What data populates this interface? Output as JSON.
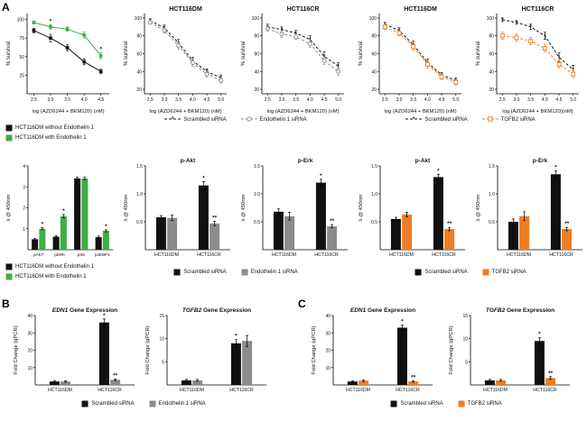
{
  "figure": {
    "panel_a_label": "A",
    "panel_b_label": "B",
    "panel_c_label": "C"
  },
  "colors": {
    "black": "#111111",
    "green": "#3cb044",
    "gray": "#8c8c8c",
    "orange": "#ef7d22"
  },
  "legends": [
    {
      "id": "leg1",
      "layout": "column",
      "entries": [
        {
          "type": "swatch",
          "color": "black",
          "label": "HCT116DM without Endothelin 1"
        },
        {
          "type": "swatch",
          "color": "green",
          "label": "HCT116DM with Endothelin 1"
        }
      ]
    },
    {
      "id": "leg2",
      "layout": "row",
      "entries": [
        {
          "type": "line",
          "marker": "star",
          "color": "black",
          "label": "Scrambled siRNA"
        },
        {
          "type": "line",
          "marker": "circle",
          "color": "gray",
          "label": "Endothelin 1 siRNA"
        }
      ]
    },
    {
      "id": "leg3",
      "layout": "row",
      "entries": [
        {
          "type": "line",
          "marker": "star",
          "color": "black",
          "label": "Scrambled siRNA"
        },
        {
          "type": "line",
          "marker": "osquare",
          "color": "orange",
          "label": "TGFB2 siRNA"
        }
      ]
    },
    {
      "id": "leg4",
      "layout": "column",
      "entries": [
        {
          "type": "swatch",
          "color": "black",
          "label": "HCT116DM without Endothelin 1"
        },
        {
          "type": "swatch",
          "color": "green",
          "label": "HCT116DM with Endothelin 1"
        }
      ]
    },
    {
      "id": "leg5",
      "layout": "row",
      "entries": [
        {
          "type": "swatch",
          "color": "black",
          "label": "Scrambled siRNA"
        },
        {
          "type": "swatch",
          "color": "gray",
          "label": "Endothelin 1 siRNA"
        }
      ]
    },
    {
      "id": "leg6",
      "layout": "row",
      "entries": [
        {
          "type": "swatch",
          "color": "black",
          "label": "Scrambled siRNA"
        },
        {
          "type": "swatch",
          "color": "orange",
          "label": "TGFB2 siRNA"
        }
      ]
    },
    {
      "id": "leg7",
      "layout": "row",
      "entries": [
        {
          "type": "swatch",
          "color": "black",
          "label": "Scrambled siRNA"
        },
        {
          "type": "swatch",
          "color": "gray",
          "label": "Endothelin 1 siRNA"
        }
      ]
    },
    {
      "id": "leg8",
      "layout": "row",
      "entries": [
        {
          "type": "swatch",
          "color": "black",
          "label": "Scrambled siRNA"
        },
        {
          "type": "swatch",
          "color": "orange",
          "label": "TGFB2 siRNA"
        }
      ]
    }
  ],
  "chart_data": [
    {
      "id": "a1",
      "kind": "line",
      "title": "",
      "xlabel": "log (AZD6244 + BKM120) (nM)",
      "ylabel": "% survival",
      "xlim": [
        2.3,
        4.75
      ],
      "xticks": [
        2.5,
        3.0,
        3.5,
        4.0,
        4.5
      ],
      "xtick_labels": [
        "2.5",
        "3.0",
        "3.5",
        "4.0",
        "4.5"
      ],
      "ylim": [
        0,
        108
      ],
      "yticks": [
        25,
        50,
        75,
        100
      ],
      "series": [
        {
          "name": "HCT116DM without Endothelin 1",
          "color": "black",
          "marker": "square",
          "x": [
            2.5,
            3.0,
            3.5,
            4.0,
            4.5
          ],
          "y": [
            85,
            75,
            62,
            43,
            30
          ],
          "err": [
            3,
            5,
            4,
            4,
            3
          ]
        },
        {
          "name": "HCT116DM with Endothelin 1",
          "color": "green",
          "marker": "square",
          "x": [
            2.5,
            3.0,
            3.5,
            4.0,
            4.5
          ],
          "y": [
            96,
            90,
            87,
            79,
            51
          ],
          "err": [
            2,
            3,
            3,
            4,
            4
          ],
          "sig": [
            "",
            "*",
            "",
            "",
            "*"
          ]
        }
      ]
    },
    {
      "id": "a2",
      "kind": "line",
      "title": "HCT116DM",
      "xlabel": "log (AZD6244 + BKM120) (nM)",
      "ylabel": "% survival",
      "xlim": [
        2.3,
        5.2
      ],
      "xticks": [
        2.5,
        3.0,
        3.5,
        4.0,
        4.5,
        5.0
      ],
      "xtick_labels": [
        "2.5",
        "3.0",
        "3.5",
        "4.0",
        "4.5",
        "5.0"
      ],
      "ylim": [
        15,
        105
      ],
      "yticks": [
        20,
        40,
        60,
        80,
        100
      ],
      "series": [
        {
          "name": "Scrambled siRNA",
          "color": "black",
          "marker": "star",
          "dash": "3,2",
          "x": [
            2.5,
            3.0,
            3.5,
            4.0,
            4.5,
            5.0
          ],
          "y": [
            97,
            89,
            72,
            52,
            40,
            33
          ],
          "err": [
            2,
            3,
            4,
            4,
            3,
            3
          ]
        },
        {
          "name": "Endothelin 1 siRNA",
          "color": "gray",
          "marker": "circle",
          "dash": "3,2",
          "x": [
            2.5,
            3.0,
            3.5,
            4.0,
            4.5,
            5.0
          ],
          "y": [
            95,
            86,
            69,
            50,
            37,
            30
          ],
          "err": [
            2,
            3,
            4,
            4,
            3,
            3
          ]
        }
      ]
    },
    {
      "id": "a3",
      "kind": "line",
      "title": "HCT116CR",
      "xlabel": "log (AZD6244 + BKM120) (nM)",
      "ylabel": "% survival",
      "xlim": [
        2.3,
        5.2
      ],
      "xticks": [
        2.5,
        3.0,
        3.5,
        4.0,
        4.5,
        5.0
      ],
      "xtick_labels": [
        "2.5",
        "3.0",
        "3.5",
        "4.0",
        "4.5",
        "5.0"
      ],
      "ylim": [
        15,
        105
      ],
      "yticks": [
        20,
        40,
        60,
        80,
        100
      ],
      "series": [
        {
          "name": "Scrambled siRNA",
          "color": "black",
          "marker": "star",
          "dash": "3,2",
          "x": [
            2.5,
            3.0,
            3.5,
            4.0,
            4.5,
            5.0
          ],
          "y": [
            90,
            87,
            83,
            76,
            57,
            46
          ],
          "err": [
            3,
            3,
            3,
            4,
            5,
            4
          ]
        },
        {
          "name": "Endothelin 1 siRNA",
          "color": "gray",
          "marker": "circle",
          "dash": "3,2",
          "x": [
            2.5,
            3.0,
            3.5,
            4.0,
            4.5,
            5.0
          ],
          "y": [
            88,
            82,
            79,
            71,
            52,
            40
          ],
          "err": [
            3,
            4,
            3,
            4,
            4,
            4
          ]
        }
      ]
    },
    {
      "id": "a4",
      "kind": "line",
      "title": "HCT116DM",
      "xlabel": "log (AZD6244 + BKM120) (nM)",
      "ylabel": "% survival",
      "xlim": [
        2.3,
        5.2
      ],
      "xticks": [
        2.5,
        3.0,
        3.5,
        4.0,
        4.5,
        5.0
      ],
      "xtick_labels": [
        "2.5",
        "3.0",
        "3.5",
        "4.0",
        "4.5",
        "5.0"
      ],
      "ylim": [
        15,
        105
      ],
      "yticks": [
        20,
        40,
        60,
        80,
        100
      ],
      "series": [
        {
          "name": "Scrambled siRNA",
          "color": "black",
          "marker": "star",
          "dash": "3,2",
          "x": [
            2.5,
            3.0,
            3.5,
            4.0,
            4.5,
            5.0
          ],
          "y": [
            93,
            86,
            70,
            50,
            36,
            30
          ],
          "err": [
            2,
            3,
            4,
            4,
            3,
            3
          ]
        },
        {
          "name": "TGFB2 siRNA",
          "color": "orange",
          "marker": "osquare",
          "dash": "3,2",
          "x": [
            2.5,
            3.0,
            3.5,
            4.0,
            4.5,
            5.0
          ],
          "y": [
            90,
            83,
            68,
            48,
            34,
            28
          ],
          "err": [
            3,
            3,
            4,
            4,
            3,
            3
          ]
        }
      ]
    },
    {
      "id": "a5",
      "kind": "line",
      "title": "HCT116CR",
      "xlabel": "log (AZD6244 + BKM120)(nM)",
      "ylabel": "% survival",
      "xlim": [
        2.3,
        5.2
      ],
      "xticks": [
        2.5,
        3.0,
        3.5,
        4.0,
        4.5,
        5.0
      ],
      "xtick_labels": [
        "2.5",
        "3.0",
        "3.5",
        "4.0",
        "4.5",
        "5.0"
      ],
      "ylim": [
        15,
        105
      ],
      "yticks": [
        20,
        40,
        60,
        80,
        100
      ],
      "series": [
        {
          "name": "Scrambled siRNA",
          "color": "black",
          "marker": "star",
          "dash": "3,2",
          "x": [
            2.5,
            3.0,
            3.5,
            4.0,
            4.5,
            5.0
          ],
          "y": [
            98,
            95,
            90,
            80,
            56,
            42
          ],
          "err": [
            2,
            2,
            3,
            4,
            5,
            5
          ]
        },
        {
          "name": "TGFB2 siRNA",
          "color": "orange",
          "marker": "osquare",
          "dash": "3,2",
          "x": [
            2.5,
            3.0,
            3.5,
            4.0,
            4.5,
            5.0
          ],
          "y": [
            80,
            78,
            74,
            66,
            48,
            37
          ],
          "err": [
            4,
            4,
            4,
            4,
            4,
            4
          ]
        }
      ]
    },
    {
      "id": "a6",
      "kind": "bar",
      "title": "",
      "ylabel": "λ @ 450nm",
      "categories": [
        "pAKT",
        "pERK",
        "pS6",
        "p4EBP1"
      ],
      "cat_font": 4.6,
      "ylim": [
        0,
        4
      ],
      "yticks": [
        1,
        2,
        3,
        4
      ],
      "series": [
        {
          "name": "HCT116DM without Endothelin 1",
          "color": "black",
          "values": [
            0.5,
            0.62,
            3.4,
            0.6
          ],
          "err": [
            0.04,
            0.05,
            0.06,
            0.05
          ],
          "sig": [
            "",
            "",
            "",
            ""
          ]
        },
        {
          "name": "HCT116DM with Endothelin 1",
          "color": "green",
          "values": [
            1.0,
            1.6,
            3.4,
            0.9
          ],
          "err": [
            0.05,
            0.08,
            0.06,
            0.05
          ],
          "sig": [
            "*",
            "*",
            "",
            "*"
          ]
        }
      ]
    },
    {
      "id": "a7",
      "kind": "bar",
      "title": "p-Akt",
      "ylabel": "λ @ 450nm",
      "categories": [
        "HCT116DM",
        "HCT116CR"
      ],
      "ylim": [
        0,
        1.5
      ],
      "yticks": [
        0.5,
        1.0,
        1.5
      ],
      "ytick_labels": [
        "0.5",
        "1.0",
        "1.5"
      ],
      "series": [
        {
          "name": "Scrambled siRNA",
          "color": "black",
          "values": [
            0.58,
            1.15
          ],
          "err": [
            0.03,
            0.07
          ],
          "sig": [
            "",
            "*"
          ]
        },
        {
          "name": "Endothelin 1 siRNA",
          "color": "gray",
          "values": [
            0.57,
            0.47
          ],
          "err": [
            0.05,
            0.04
          ],
          "sig": [
            "",
            "**"
          ]
        }
      ]
    },
    {
      "id": "a8",
      "kind": "bar",
      "title": "p-Erk",
      "ylabel": "λ @ 450nm",
      "categories": [
        "HCT116DM",
        "HCT116CR"
      ],
      "ylim": [
        0,
        1.5
      ],
      "yticks": [
        0.5,
        1.0,
        1.5
      ],
      "ytick_labels": [
        "0.5",
        "1.0",
        "1.5"
      ],
      "series": [
        {
          "name": "Scrambled siRNA",
          "color": "black",
          "values": [
            0.68,
            1.2
          ],
          "err": [
            0.05,
            0.06
          ],
          "sig": [
            "",
            "*"
          ]
        },
        {
          "name": "Endothelin 1 siRNA",
          "color": "gray",
          "values": [
            0.6,
            0.42
          ],
          "err": [
            0.07,
            0.03
          ],
          "sig": [
            "",
            "**"
          ]
        }
      ]
    },
    {
      "id": "a9",
      "kind": "bar",
      "title": "p-Akt",
      "ylabel": "λ @ 450nm",
      "categories": [
        "HCT116DM",
        "HCT116CR"
      ],
      "ylim": [
        0,
        1.5
      ],
      "yticks": [
        0.5,
        1.0,
        1.5
      ],
      "ytick_labels": [
        "0.5",
        "1.0",
        "1.5"
      ],
      "series": [
        {
          "name": "Scrambled siRNA",
          "color": "black",
          "values": [
            0.55,
            1.3
          ],
          "err": [
            0.03,
            0.05
          ],
          "sig": [
            "",
            "*"
          ]
        },
        {
          "name": "TGFB2 siRNA",
          "color": "orange",
          "values": [
            0.63,
            0.37
          ],
          "err": [
            0.04,
            0.03
          ],
          "sig": [
            "",
            "**"
          ]
        }
      ]
    },
    {
      "id": "a10",
      "kind": "bar",
      "title": "p-Erk",
      "ylabel": "λ @ 450nm",
      "categories": [
        "HCT116DM",
        "HCT116CR"
      ],
      "ylim": [
        0,
        1.5
      ],
      "yticks": [
        0.5,
        1.0,
        1.5
      ],
      "ytick_labels": [
        "0.5",
        "1.0",
        "1.5"
      ],
      "series": [
        {
          "name": "Scrambled siRNA",
          "color": "black",
          "values": [
            0.5,
            1.35
          ],
          "err": [
            0.05,
            0.06
          ],
          "sig": [
            "",
            "*"
          ]
        },
        {
          "name": "TGFB2 siRNA",
          "color": "orange",
          "values": [
            0.6,
            0.37
          ],
          "err": [
            0.08,
            0.03
          ],
          "sig": [
            "",
            "**"
          ]
        }
      ]
    },
    {
      "id": "b1",
      "kind": "bar",
      "title_em": "EDN1",
      "title_rest": " Gene Expression",
      "ylabel": "Fold Change (qPCR)",
      "categories": [
        "HCT116DM",
        "HCT116CR"
      ],
      "ylim": [
        0,
        40
      ],
      "yticks": [
        10,
        20,
        30,
        40
      ],
      "series": [
        {
          "name": "Scrambled siRNA",
          "color": "black",
          "values": [
            2,
            36
          ],
          "err": [
            0.4,
            2
          ],
          "sig": [
            "",
            "*"
          ]
        },
        {
          "name": "Endothelin 1 siRNA",
          "color": "gray",
          "values": [
            2,
            3
          ],
          "err": [
            0.4,
            0.5
          ],
          "sig": [
            "",
            "**"
          ]
        }
      ]
    },
    {
      "id": "b2",
      "kind": "bar",
      "title_em": "TGFB2",
      "title_rest": " Gene Expression",
      "ylabel": "Fold Change (qPCR)",
      "categories": [
        "HCT116DM",
        "HCT116CR"
      ],
      "ylim": [
        0,
        15
      ],
      "yticks": [
        5,
        10,
        15
      ],
      "series": [
        {
          "name": "Scrambled siRNA",
          "color": "black",
          "values": [
            1,
            9
          ],
          "err": [
            0.2,
            0.8
          ],
          "sig": [
            "",
            "*"
          ]
        },
        {
          "name": "Endothelin 1 siRNA",
          "color": "gray",
          "values": [
            1,
            9.5
          ],
          "err": [
            0.2,
            1.2
          ],
          "sig": [
            "",
            ""
          ]
        }
      ]
    },
    {
      "id": "c1",
      "kind": "bar",
      "title_em": "EDN1",
      "title_rest": " Gene Expression",
      "ylabel": "Fold Change (qPCR)",
      "categories": [
        "HCT116DM",
        "HCT116CR"
      ],
      "ylim": [
        0,
        40
      ],
      "yticks": [
        10,
        20,
        30,
        40
      ],
      "series": [
        {
          "name": "Scrambled siRNA",
          "color": "black",
          "values": [
            2,
            33
          ],
          "err": [
            0.4,
            1.5
          ],
          "sig": [
            "",
            "*"
          ]
        },
        {
          "name": "TGFB2 siRNA",
          "color": "orange",
          "values": [
            2.5,
            2
          ],
          "err": [
            0.5,
            0.4
          ],
          "sig": [
            "",
            "**"
          ]
        }
      ]
    },
    {
      "id": "c2",
      "kind": "bar",
      "title_em": "TGFB2",
      "title_rest": " Gene Expression",
      "ylabel": "Fold Change (qPCR)",
      "categories": [
        "HCT116DM",
        "HCT116CR"
      ],
      "ylim": [
        0,
        15
      ],
      "yticks": [
        5,
        10,
        15
      ],
      "series": [
        {
          "name": "Scrambled siRNA",
          "color": "black",
          "values": [
            1,
            9.5
          ],
          "err": [
            0.2,
            0.7
          ],
          "sig": [
            "",
            "*"
          ]
        },
        {
          "name": "TGFB2 siRNA",
          "color": "orange",
          "values": [
            1,
            1.5
          ],
          "err": [
            0.2,
            0.3
          ],
          "sig": [
            "",
            "**"
          ]
        }
      ]
    }
  ]
}
